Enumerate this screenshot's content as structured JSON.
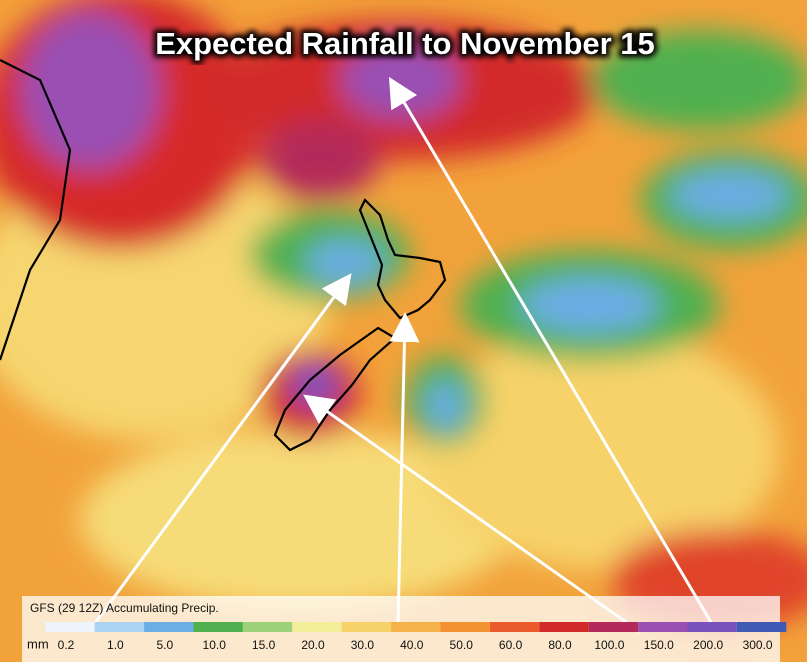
{
  "title": "Expected Rainfall to November 15",
  "legend": {
    "caption": "GFS (29 12Z) Accumulating Precip.",
    "unit": "mm",
    "stops": [
      {
        "label": "0.2",
        "color": "#eef4fb"
      },
      {
        "label": "1.0",
        "color": "#a9d3f0"
      },
      {
        "label": "5.0",
        "color": "#6aaee6"
      },
      {
        "label": "10.0",
        "color": "#4fb04f"
      },
      {
        "label": "15.0",
        "color": "#9cd37a"
      },
      {
        "label": "20.0",
        "color": "#f3ee9a"
      },
      {
        "label": "30.0",
        "color": "#f7d26a"
      },
      {
        "label": "40.0",
        "color": "#f5b24a"
      },
      {
        "label": "50.0",
        "color": "#f29232"
      },
      {
        "label": "60.0",
        "color": "#ea5a2a"
      },
      {
        "label": "80.0",
        "color": "#d22a2a"
      },
      {
        "label": "100.0",
        "color": "#b32a5a"
      },
      {
        "label": "150.0",
        "color": "#9a4fb2"
      },
      {
        "label": "200.0",
        "color": "#7a52c0"
      },
      {
        "label": "300.0",
        "color": "#3e5ab5"
      }
    ]
  }
}
